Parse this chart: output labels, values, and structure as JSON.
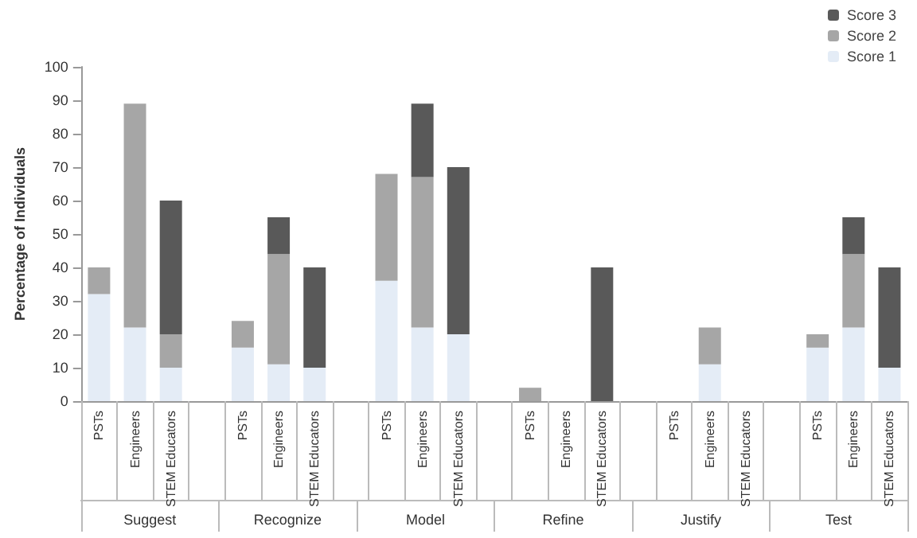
{
  "chart_data": {
    "type": "bar",
    "stacked": true,
    "ylabel": "Percentage of Individuals",
    "categories": [
      "PSTs",
      "Engineers",
      "STEM Educators",
      null,
      "PSTs",
      "Engineers",
      "STEM Educators",
      null,
      "PSTs",
      "Engineers",
      "STEM Educators",
      null,
      "PSTs",
      "Engineers",
      "STEM Educators",
      null,
      "PSTs",
      "Engineers",
      "STEM Educators",
      null,
      "PSTs",
      "Engineers",
      "STEM Educators"
    ],
    "series": [
      {
        "name": "Score 1",
        "color": "#e4ecf6",
        "values": [
          32,
          22,
          10,
          null,
          16,
          11,
          10,
          null,
          36,
          22,
          20,
          null,
          0,
          0,
          0,
          null,
          0,
          11,
          0,
          null,
          16,
          22,
          10
        ]
      },
      {
        "name": "Score 2",
        "color": "#a6a6a6",
        "values": [
          8,
          67,
          10,
          null,
          8,
          33,
          0,
          null,
          32,
          45,
          0,
          null,
          4,
          0,
          0,
          null,
          0,
          11,
          0,
          null,
          4,
          22,
          0
        ]
      },
      {
        "name": "Score 3",
        "color": "#595959",
        "values": [
          0,
          0,
          40,
          null,
          0,
          11,
          30,
          null,
          0,
          22,
          50,
          null,
          0,
          0,
          40,
          null,
          0,
          0,
          0,
          null,
          0,
          11,
          30
        ]
      }
    ],
    "annotations": [
      "Suggest",
      "Recognize",
      "Model",
      "Refine",
      "Justify",
      "Test"
    ],
    "ylim": [
      0,
      100
    ],
    "yticks": [
      0,
      10,
      20,
      30,
      40,
      50,
      60,
      70,
      80,
      90,
      100
    ],
    "grid": false,
    "legend": "top right"
  }
}
